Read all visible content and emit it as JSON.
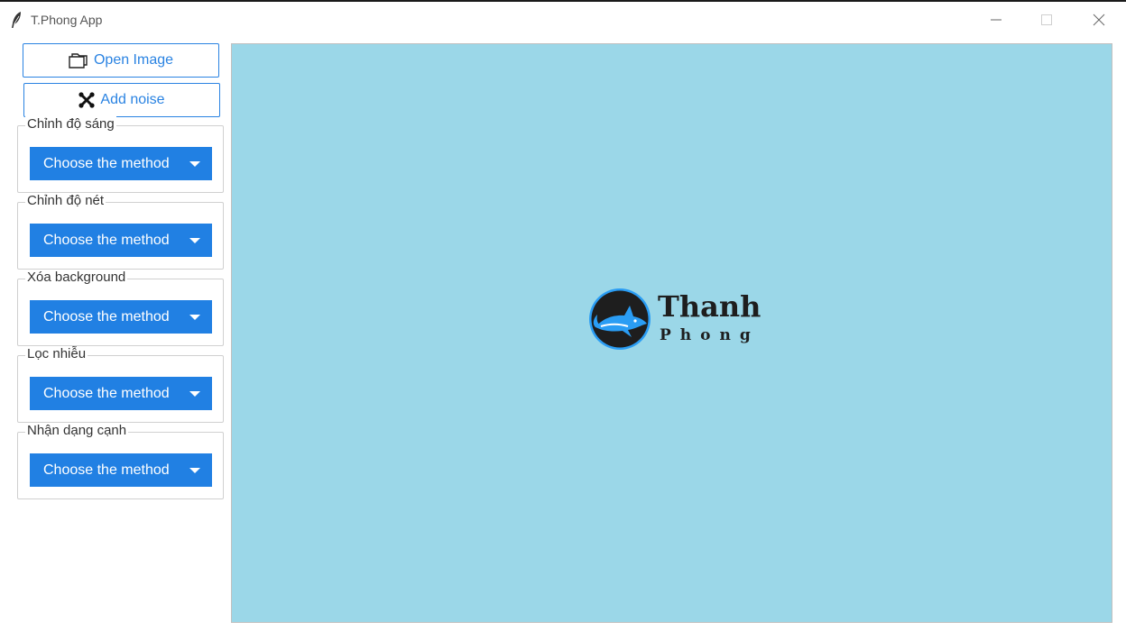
{
  "window": {
    "title": "T.Phong App",
    "icon": "feather-icon"
  },
  "toolbar": {
    "open_image": {
      "label": "Open Image",
      "icon": "folder-icon"
    },
    "add_noise": {
      "label": "Add noise",
      "icon": "tools-icon"
    }
  },
  "groups": [
    {
      "label": "Chỉnh độ sáng",
      "dropdown": "Choose the method"
    },
    {
      "label": "Chỉnh độ nét",
      "dropdown": "Choose the method"
    },
    {
      "label": "Xóa background",
      "dropdown": "Choose the method"
    },
    {
      "label": "Lọc nhiễu",
      "dropdown": "Choose the method"
    },
    {
      "label": "Nhận dạng cạnh",
      "dropdown": "Choose the method"
    }
  ],
  "canvas": {
    "logo_line1": "Thanh",
    "logo_line2": "Phong",
    "background_color": "#9bd7e8"
  },
  "colors": {
    "accent": "#2180e3",
    "logo_dark": "#1e1e1e",
    "logo_blue": "#2a9df4"
  }
}
